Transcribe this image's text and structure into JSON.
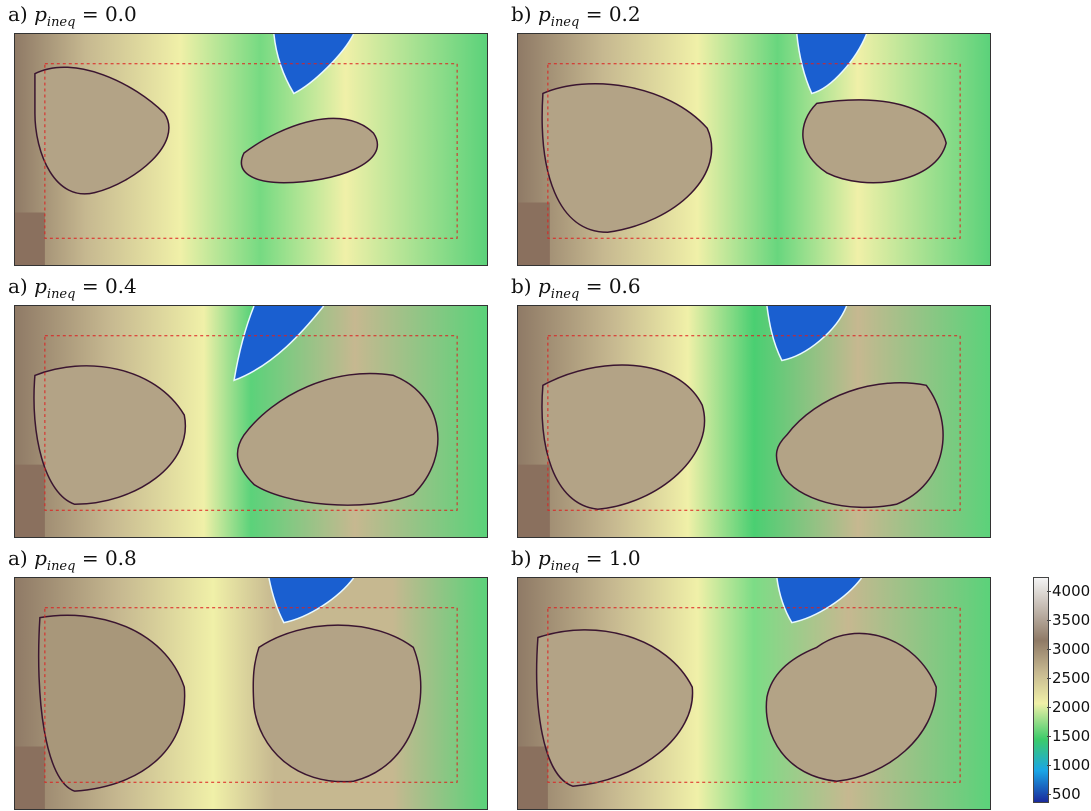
{
  "panels": [
    {
      "prefix": "a)",
      "symbol": "p",
      "subscript": "ineq",
      "operator": "=",
      "value": "0.0"
    },
    {
      "prefix": "b)",
      "symbol": "p",
      "subscript": "ineq",
      "operator": "=",
      "value": "0.2"
    },
    {
      "prefix": "a)",
      "symbol": "p",
      "subscript": "ineq",
      "operator": "=",
      "value": "0.4"
    },
    {
      "prefix": "b)",
      "symbol": "p",
      "subscript": "ineq",
      "operator": "=",
      "value": "0.6"
    },
    {
      "prefix": "a)",
      "symbol": "p",
      "subscript": "ineq",
      "operator": "=",
      "value": "0.8"
    },
    {
      "prefix": "b)",
      "symbol": "p",
      "subscript": "ineq",
      "operator": "=",
      "value": "1.0"
    }
  ],
  "colorbar": {
    "ticks": [
      "4000",
      "3500",
      "3000",
      "2500",
      "2000",
      "1500",
      "1000",
      "500"
    ],
    "colors": {
      "high": "#f4f4f4",
      "brown": "#8f7a66",
      "tan": "#c6b890",
      "yellow": "#f0f0a8",
      "green": "#3ccb6a",
      "blue": "#1aa6e6",
      "low": "#1a2a9c"
    }
  },
  "overlay_colors": {
    "contour_dark": "#3a1530",
    "contour_light": "#e8f8ff",
    "dashed_box": "#dd2020"
  }
}
